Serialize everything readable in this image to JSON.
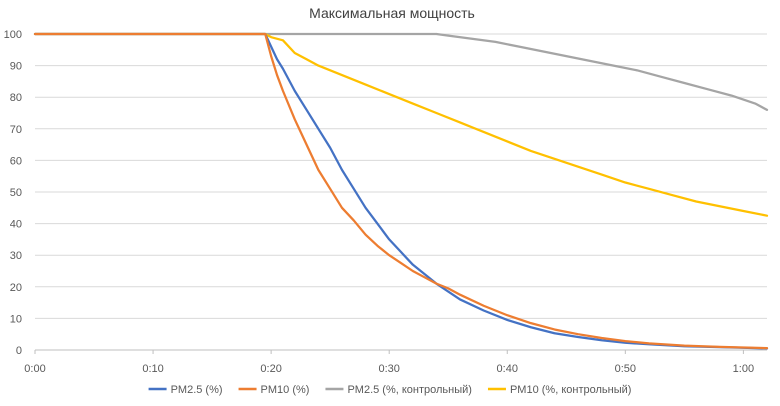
{
  "chart_data": {
    "type": "line",
    "title": "Максимальная мощность",
    "xlabel": "",
    "ylabel": "",
    "x_ticks": [
      "0:00",
      "0:10",
      "0:20",
      "0:30",
      "0:40",
      "0:50",
      "1:00"
    ],
    "x_tick_values": [
      0,
      10,
      20,
      30,
      40,
      50,
      60
    ],
    "xlim": [
      0,
      62
    ],
    "ylim": [
      0,
      100
    ],
    "y_ticks": [
      0,
      10,
      20,
      30,
      40,
      50,
      60,
      70,
      80,
      90,
      100
    ],
    "grid": true,
    "legend_position": "bottom",
    "series": [
      {
        "name": "PM2.5 (%)",
        "color": "#4472C4",
        "x": [
          0,
          19.5,
          20,
          20.5,
          21,
          22,
          23,
          24,
          25,
          26,
          27,
          28,
          29,
          30,
          31,
          32,
          33,
          34,
          35,
          36,
          38,
          40,
          42,
          44,
          46,
          48,
          50,
          52,
          55,
          58,
          60,
          62
        ],
        "y": [
          100,
          100,
          96,
          92,
          89,
          82,
          76,
          70,
          64,
          57,
          51,
          45,
          40,
          35,
          31,
          27,
          24,
          21,
          18.5,
          16,
          12.5,
          9.5,
          7.2,
          5.3,
          4.1,
          3.1,
          2.3,
          1.8,
          1.2,
          0.9,
          0.7,
          0.5
        ]
      },
      {
        "name": "PM10 (%)",
        "color": "#ED7D31",
        "x": [
          0,
          19.5,
          20,
          20.5,
          21,
          22,
          23,
          24,
          25,
          26,
          27,
          28,
          29,
          30,
          31,
          32,
          33,
          34,
          35,
          36,
          38,
          40,
          42,
          44,
          46,
          48,
          50,
          52,
          55,
          58,
          60,
          62
        ],
        "y": [
          100,
          100,
          93,
          87,
          82,
          73,
          65,
          57,
          51,
          45,
          41,
          36.5,
          33,
          30,
          27.5,
          25,
          23,
          21,
          19.5,
          17.5,
          14,
          11,
          8.5,
          6.5,
          5,
          3.8,
          2.8,
          2.1,
          1.4,
          1,
          0.8,
          0.6
        ]
      },
      {
        "name": "PM2.5 (%, контрольный)",
        "color": "#A5A5A5",
        "x": [
          0,
          19.5,
          30,
          34,
          35,
          37,
          39,
          41,
          43,
          45,
          47,
          49,
          51,
          53,
          55,
          57,
          59,
          61,
          62
        ],
        "y": [
          100,
          100,
          100,
          100,
          99.5,
          98.5,
          97.5,
          96,
          94.5,
          93,
          91.5,
          90,
          88.5,
          86.5,
          84.5,
          82.5,
          80.5,
          78,
          76
        ]
      },
      {
        "name": "PM10 (%, контрольный)",
        "color": "#FFC000",
        "x": [
          0,
          19.5,
          20,
          21,
          22,
          23,
          24,
          26,
          28,
          30,
          32,
          34,
          36,
          38,
          40,
          42,
          44,
          46,
          48,
          50,
          52,
          54,
          56,
          58,
          60,
          62
        ],
        "y": [
          100,
          100,
          99,
          98,
          94,
          92,
          90,
          87,
          84,
          81,
          78,
          75,
          72,
          69,
          66,
          63,
          60.5,
          58,
          55.5,
          53,
          51,
          49,
          47,
          45.5,
          44,
          42.5
        ]
      }
    ]
  }
}
